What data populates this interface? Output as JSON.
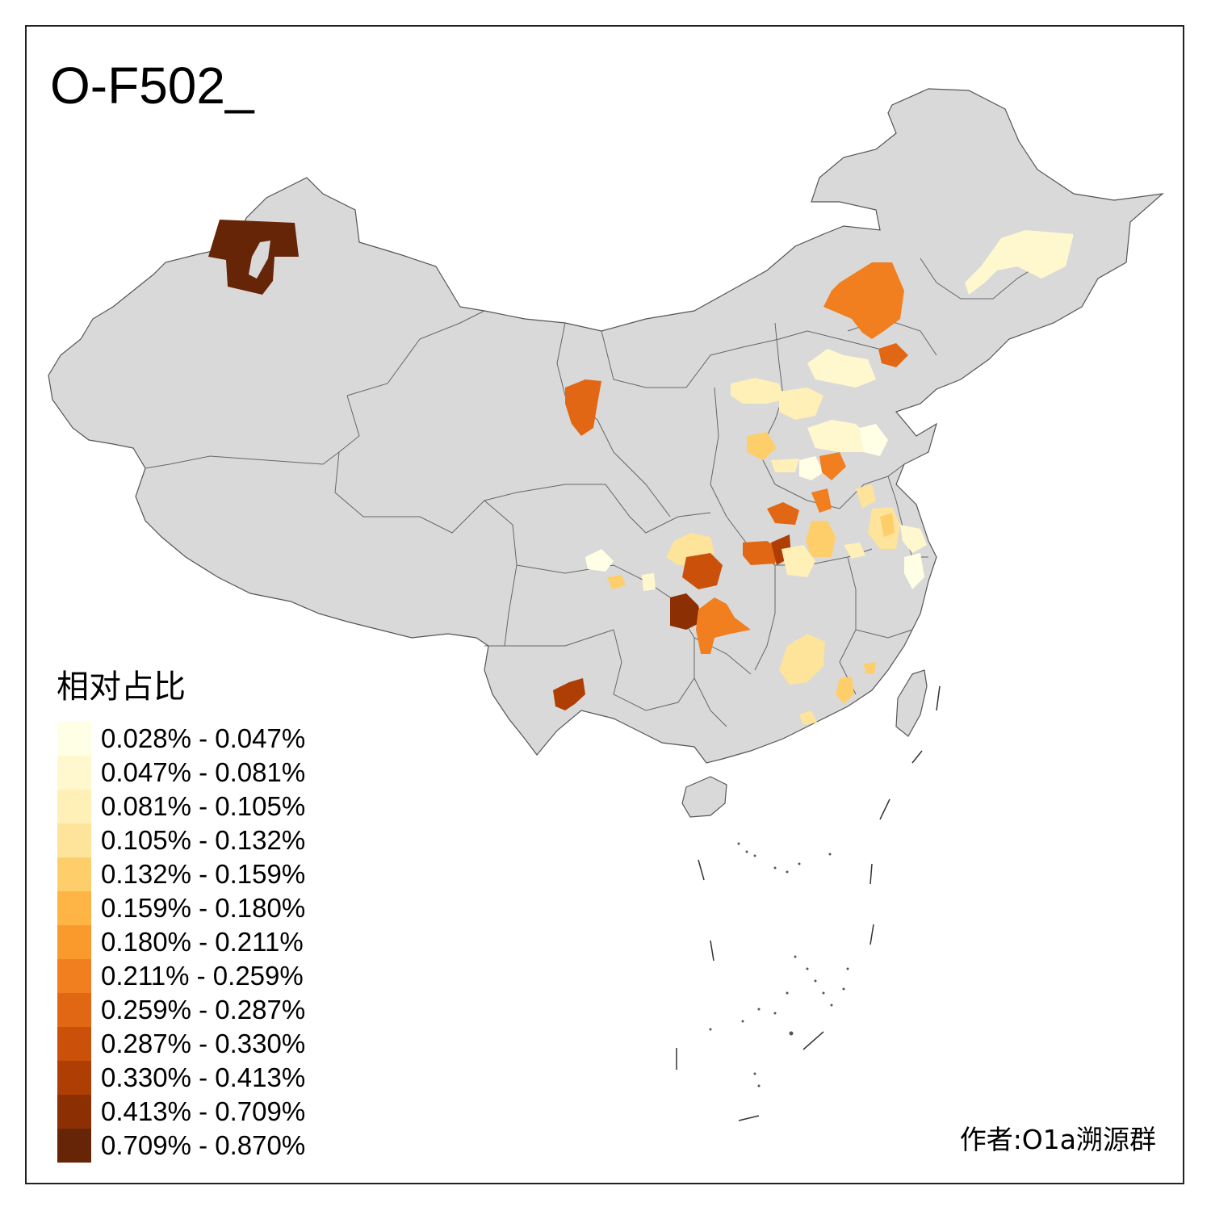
{
  "title": "O-F502_",
  "legend": {
    "title": "相对占比",
    "items": [
      {
        "label": "0.028% - 0.047%",
        "color": "#FFFFE5"
      },
      {
        "label": "0.047% - 0.081%",
        "color": "#FFF8CE"
      },
      {
        "label": "0.081% - 0.105%",
        "color": "#FEF0B6"
      },
      {
        "label": "0.105% - 0.132%",
        "color": "#FEE39A"
      },
      {
        "label": "0.132% - 0.159%",
        "color": "#FECE6A"
      },
      {
        "label": "0.159% - 0.180%",
        "color": "#FEB545"
      },
      {
        "label": "0.180% - 0.211%",
        "color": "#FB9A2C"
      },
      {
        "label": "0.211% - 0.259%",
        "color": "#F17F20"
      },
      {
        "label": "0.259% - 0.287%",
        "color": "#E26714"
      },
      {
        "label": "0.287% - 0.330%",
        "color": "#CB500A"
      },
      {
        "label": "0.330% - 0.413%",
        "color": "#AF3E04"
      },
      {
        "label": "0.413% - 0.709%",
        "color": "#8C3004"
      },
      {
        "label": "0.709% - 0.870%",
        "color": "#662506"
      }
    ]
  },
  "author": "作者:O1a溯源群",
  "colors": {
    "land": "#D9D9D9",
    "border": "#555555",
    "frame": "#222222"
  }
}
